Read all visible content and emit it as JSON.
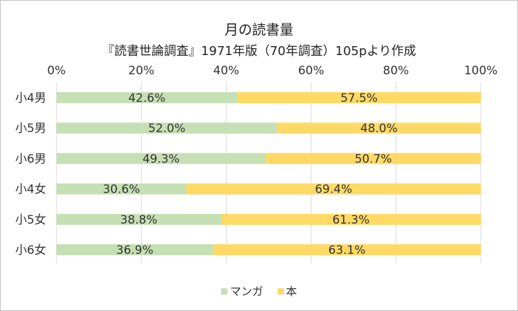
{
  "chart_data": {
    "type": "bar",
    "orientation": "horizontal",
    "stacked": "percent",
    "title": "月の読書量",
    "subtitle": "『読書世論調査』1971年版（70年調査）105pより作成",
    "categories": [
      "小4男",
      "小5男",
      "小6男",
      "小4女",
      "小5女",
      "小6女"
    ],
    "series": [
      {
        "name": "マンガ",
        "color": "#c5e0b4",
        "values": [
          42.6,
          52.0,
          49.3,
          30.6,
          38.8,
          36.9
        ],
        "labels": [
          "42.6%",
          "52.0%",
          "49.3%",
          "30.6%",
          "38.8%",
          "36.9%"
        ]
      },
      {
        "name": "本",
        "color": "#ffd966",
        "values": [
          57.5,
          48.0,
          50.7,
          69.4,
          61.3,
          63.1
        ],
        "labels": [
          "57.5%",
          "48.0%",
          "50.7%",
          "69.4%",
          "61.3%",
          "63.1%"
        ]
      }
    ],
    "xlim": [
      0,
      100
    ],
    "xticks": [
      0,
      20,
      40,
      60,
      80,
      100
    ],
    "xtick_labels": [
      "0%",
      "20%",
      "40%",
      "60%",
      "80%",
      "100%"
    ],
    "axis_position": "top",
    "gridlines": true,
    "gridline_color": "#d9d9d9",
    "legend": "bottom-center"
  }
}
